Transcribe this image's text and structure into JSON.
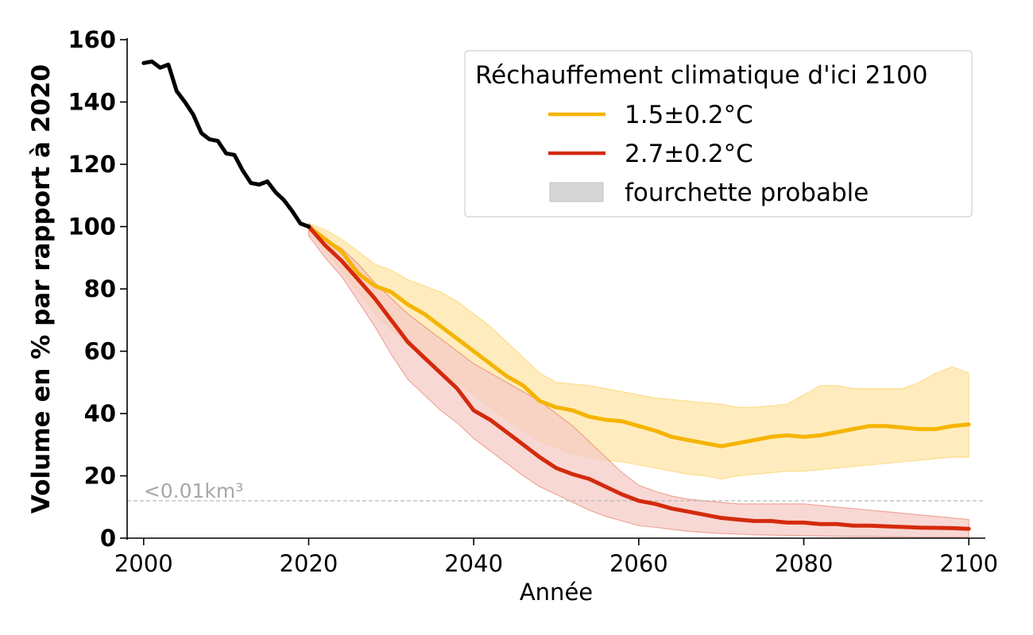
{
  "chart_data": {
    "type": "line",
    "xlabel": "Année",
    "ylabel": "Volume en % par rapport à 2020",
    "xlim": [
      1998,
      2102
    ],
    "ylim": [
      0,
      160
    ],
    "xticks": [
      2000,
      2020,
      2040,
      2060,
      2080,
      2100
    ],
    "yticks": [
      0,
      20,
      40,
      60,
      80,
      100,
      120,
      140,
      160
    ],
    "legend": {
      "title": "Réchauffement climatique d'ici 2100",
      "position": "top-right",
      "entries": [
        "1.5±0.2°C",
        "2.7±0.2°C",
        "fourchette probable"
      ]
    },
    "threshold": {
      "y": 12,
      "label": "<0.01km³",
      "color": "#b0b0b0"
    },
    "historical": {
      "color": "#000000",
      "x": [
        2000,
        2001,
        2002,
        2003,
        2004,
        2005,
        2006,
        2007,
        2008,
        2009,
        2010,
        2011,
        2012,
        2013,
        2014,
        2015,
        2016,
        2017,
        2018,
        2019,
        2020
      ],
      "y": [
        152.5,
        153,
        151,
        152,
        143.5,
        140,
        136,
        130,
        128,
        127.5,
        123.5,
        123,
        118,
        114,
        113.5,
        114.5,
        111,
        108.5,
        105,
        101,
        100
      ]
    },
    "series": [
      {
        "name": "1.5±0.2°C",
        "color": "#f5b400",
        "band_color": "#ffe9b3",
        "x": [
          2020,
          2022,
          2024,
          2026,
          2028,
          2030,
          2032,
          2034,
          2036,
          2038,
          2040,
          2042,
          2044,
          2046,
          2048,
          2050,
          2052,
          2054,
          2056,
          2058,
          2060,
          2062,
          2064,
          2066,
          2068,
          2070,
          2072,
          2074,
          2076,
          2078,
          2080,
          2082,
          2084,
          2086,
          2088,
          2090,
          2092,
          2094,
          2096,
          2098,
          2100
        ],
        "y": [
          100,
          96,
          92,
          85,
          81,
          79,
          75,
          72,
          68,
          64,
          60,
          56,
          52,
          49,
          44,
          42,
          41,
          39,
          38,
          37.5,
          36,
          34.5,
          32.5,
          31.5,
          30.5,
          29.5,
          30.5,
          31.5,
          32.5,
          33,
          32.5,
          33,
          34,
          35,
          36,
          36,
          35.5,
          35,
          35,
          36,
          36.5
        ],
        "lower": [
          98,
          92,
          86,
          79,
          72,
          67,
          62,
          57,
          53,
          50,
          46,
          42,
          38,
          34.5,
          31,
          29,
          27,
          26,
          25,
          24.5,
          23.5,
          22.5,
          21.5,
          20.5,
          20,
          19,
          20,
          20.5,
          21,
          21.5,
          21.5,
          22,
          22.5,
          23,
          23.5,
          24,
          24.5,
          25,
          25.5,
          26,
          26
        ],
        "upper": [
          101,
          99,
          96,
          92,
          88,
          86,
          83,
          81,
          79,
          76,
          72,
          68,
          63,
          58,
          53,
          50,
          49.5,
          49,
          48,
          47,
          46,
          45,
          44.5,
          44,
          43.5,
          43,
          42,
          42,
          42.5,
          43,
          46,
          49,
          49,
          48,
          48,
          48,
          48,
          50,
          53,
          55,
          53
        ]
      },
      {
        "name": "2.7±0.2°C",
        "color": "#d42a0c",
        "band_color": "#f5cbc6",
        "x": [
          2020,
          2022,
          2024,
          2026,
          2028,
          2030,
          2032,
          2034,
          2036,
          2038,
          2040,
          2042,
          2044,
          2046,
          2048,
          2050,
          2052,
          2054,
          2056,
          2058,
          2060,
          2062,
          2064,
          2066,
          2068,
          2070,
          2072,
          2074,
          2076,
          2078,
          2080,
          2082,
          2084,
          2086,
          2088,
          2090,
          2092,
          2094,
          2096,
          2098,
          2100
        ],
        "y": [
          100,
          94,
          89,
          83,
          77,
          70,
          63,
          58,
          53,
          48,
          41,
          38,
          34,
          30,
          26,
          22.5,
          20.5,
          19,
          16.5,
          14,
          12,
          11,
          9.5,
          8.5,
          7.5,
          6.5,
          6,
          5.5,
          5.5,
          5,
          5,
          4.5,
          4.5,
          4,
          4,
          3.8,
          3.6,
          3.4,
          3.3,
          3.2,
          3
        ],
        "lower": [
          97,
          90,
          84,
          76,
          68,
          59,
          51,
          46,
          41,
          37,
          32,
          28,
          24,
          20,
          16.5,
          14,
          11.5,
          9,
          7,
          5.5,
          4,
          3.5,
          2.8,
          2.2,
          1.8,
          1.5,
          1.3,
          1.1,
          1.0,
          0.9,
          0.8,
          0.7,
          0.6,
          0.5,
          0.5,
          0.4,
          0.4,
          0.3,
          0.3,
          0.3,
          0.3
        ],
        "upper": [
          101,
          96,
          93,
          88,
          82,
          77,
          72,
          68,
          64,
          60,
          56,
          53,
          50,
          47,
          44,
          40,
          36,
          31,
          26,
          21,
          17,
          15,
          13.5,
          12.5,
          12,
          11.5,
          11,
          11,
          11,
          11,
          11,
          10.5,
          10,
          9.5,
          9,
          8.5,
          8,
          7.5,
          7,
          6.5,
          6
        ]
      }
    ]
  }
}
